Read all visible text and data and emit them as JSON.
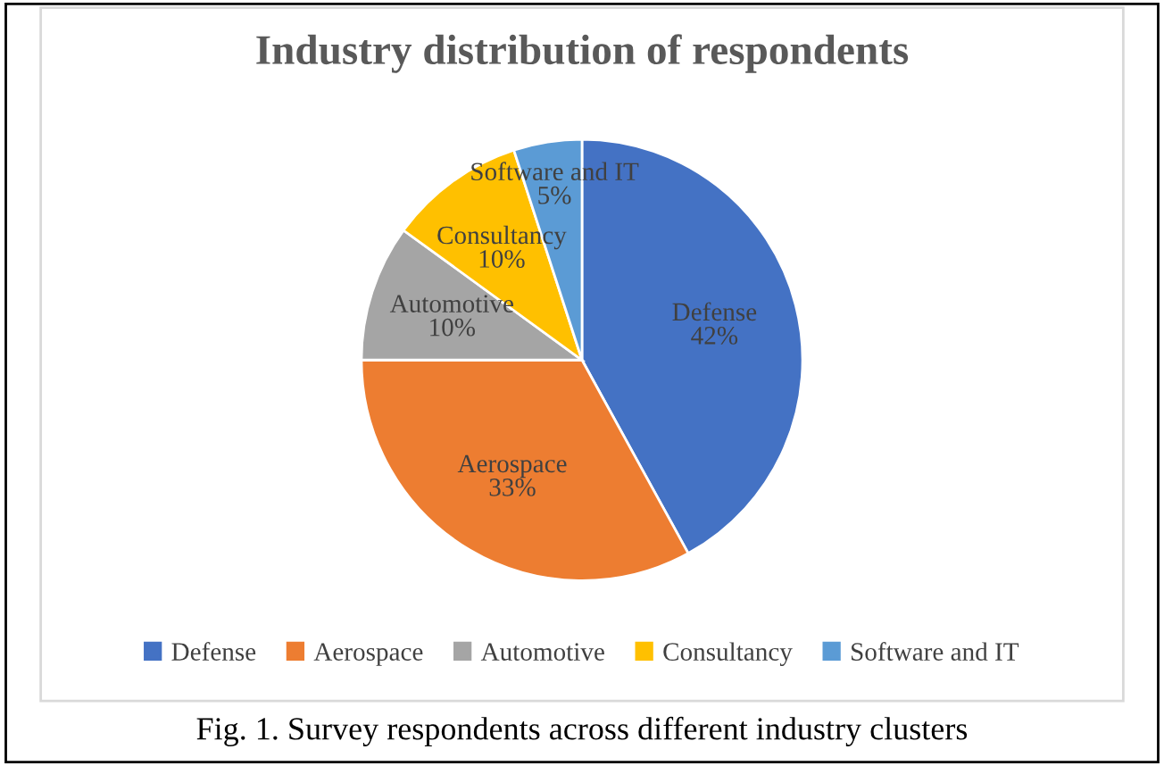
{
  "chart_data": {
    "type": "pie",
    "title": "Industry distribution of respondents",
    "categories": [
      "Defense",
      "Aerospace",
      "Automotive",
      "Consultancy",
      "Software and IT"
    ],
    "values": [
      42,
      33,
      10,
      10,
      5
    ],
    "colors": [
      "#4472c4",
      "#ed7d31",
      "#a5a5a5",
      "#ffc000",
      "#5b9bd5"
    ],
    "value_labels": [
      "42%",
      "33%",
      "10%",
      "10%",
      "5%"
    ],
    "legend": "bottom",
    "annotations": [
      "Fig. 1. Survey respondents across different industry clusters"
    ]
  }
}
